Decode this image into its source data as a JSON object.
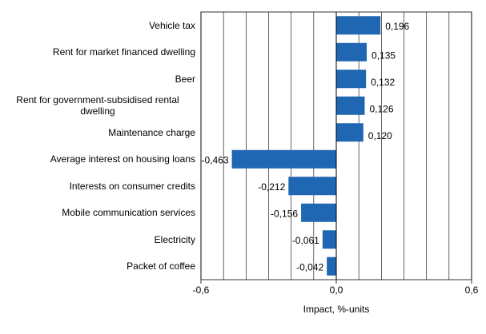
{
  "chart_data": {
    "type": "barh",
    "categories": [
      "Vehicle tax",
      "Rent for market financed dwelling",
      "Beer",
      "Rent for government-subsidised rental dwelling",
      "Maintenance charge",
      "Average interest on housing loans",
      "Interests on consumer credits",
      "Mobile communication services",
      "Electricity",
      "Packet of coffee"
    ],
    "values": [
      0.196,
      0.135,
      0.132,
      0.126,
      0.12,
      -0.463,
      -0.212,
      -0.156,
      -0.061,
      -0.042
    ],
    "value_labels": [
      "0,196",
      "0,135",
      "0,132",
      "0,126",
      "0,120",
      "-0,463",
      "-0,212",
      "-0,156",
      "-0,061",
      "-0,042"
    ],
    "color": "#1f66b3",
    "xlabel": "Impact, %-units",
    "xlim": [
      -0.6,
      0.6
    ],
    "xticks": [
      {
        "value": -0.6,
        "label": "-0,6"
      },
      {
        "value": 0,
        "label": "0,0"
      },
      {
        "value": 0.6,
        "label": "0,6"
      }
    ],
    "xgrid": [
      -0.5,
      -0.4,
      -0.3,
      -0.2,
      -0.1,
      0.1,
      0.2,
      0.3,
      0.4,
      0.5
    ],
    "grid": true
  }
}
